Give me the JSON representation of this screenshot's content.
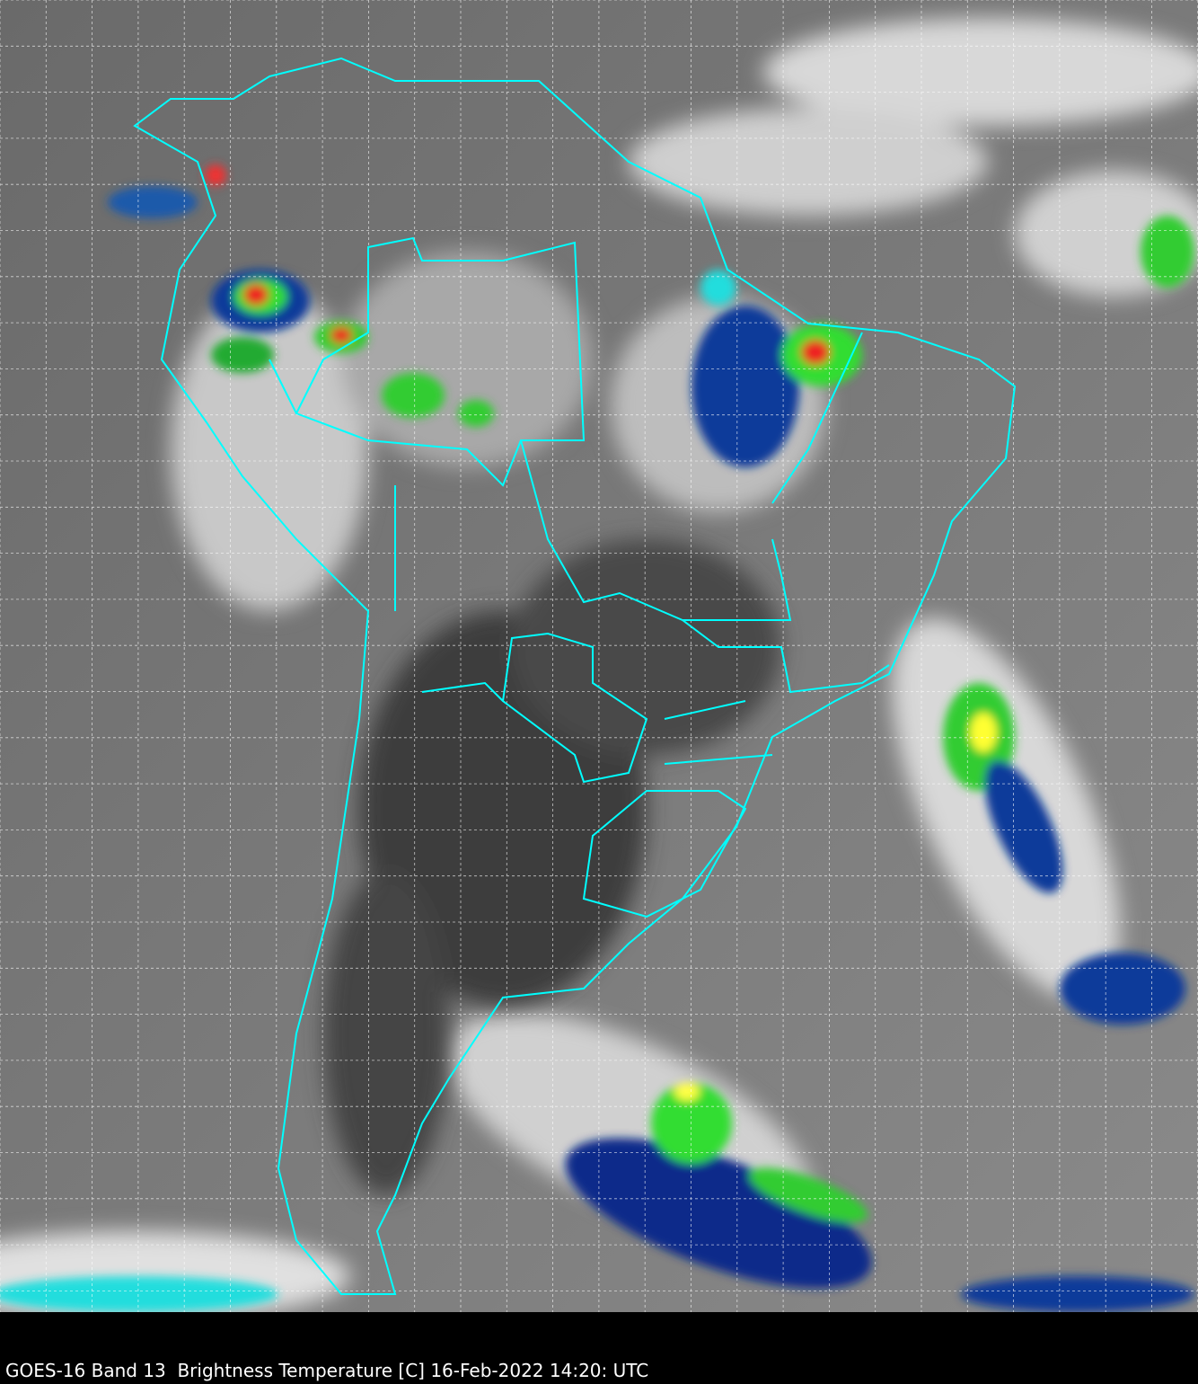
{
  "caption": "GOES-16 Band 13  Brightness Temperature [C] 16-Feb-2022 14:20: UTC",
  "map": {
    "type": "satellite infrared image",
    "region": "South America",
    "gridlines": true,
    "colors": {
      "borders": "#00ffff",
      "grid": "#ffffff",
      "cold_cloud_ramp": [
        "#00ffff",
        "#0033aa",
        "#00ff00",
        "#ffff00",
        "#ff0000"
      ],
      "background": "#000000"
    }
  }
}
